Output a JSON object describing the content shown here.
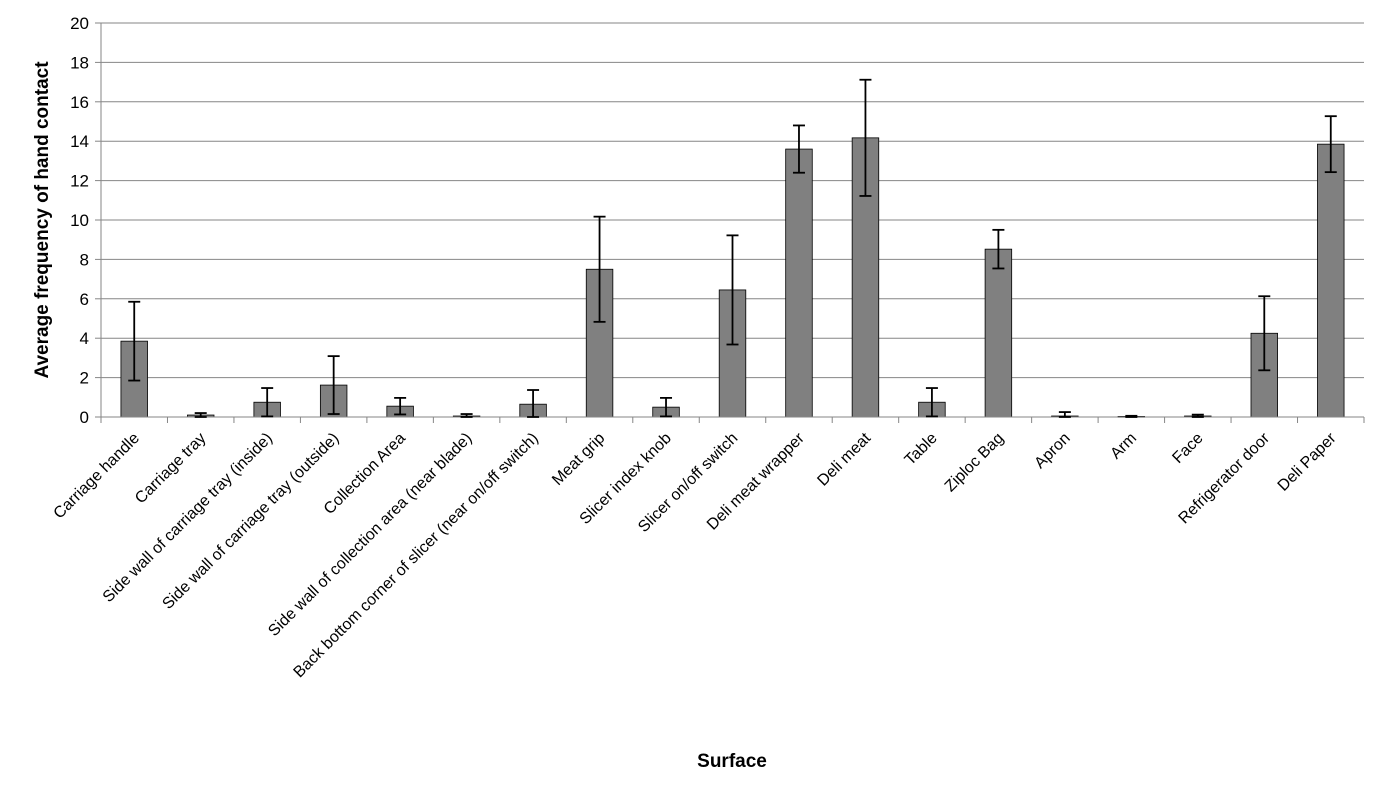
{
  "chart_data": {
    "type": "bar",
    "title": "",
    "xlabel": "Surface",
    "ylabel": "Average frequency of hand contact",
    "ylim": [
      0,
      20
    ],
    "yticks": [
      "0",
      "2",
      "4",
      "6",
      "8",
      "10",
      "12",
      "14",
      "16",
      "18",
      "20"
    ],
    "grid": true,
    "legend": "none",
    "colors": {
      "bar": "#808080",
      "bar_border": "#000000",
      "grid": "#868686",
      "axis": "#868686",
      "error_bar": "#000000"
    },
    "categories": [
      "Carriage handle",
      "Carriage tray",
      "Side wall of carriage tray (inside)",
      "Side wall of carriage tray (outside)",
      "Collection Area",
      "Side wall of collection area (near blade)",
      "Back bottom corner of slicer (near on/off switch)",
      "Meat grip",
      "Slicer index knob",
      "Slicer on/off switch",
      "Deli meat wrapper",
      "Deli meat",
      "Table",
      "Ziploc Bag",
      "Apron",
      "Arm",
      "Face",
      "Refrigerator door",
      "Deli Paper"
    ],
    "values": [
      3.85,
      0.1,
      0.75,
      1.62,
      0.55,
      0.05,
      0.65,
      7.5,
      0.5,
      6.45,
      13.6,
      14.17,
      0.75,
      8.52,
      0.05,
      0.03,
      0.05,
      4.25,
      13.85
    ],
    "error": [
      2.0,
      0.1,
      0.72,
      1.47,
      0.42,
      0.1,
      0.72,
      2.67,
      0.47,
      2.77,
      1.2,
      2.95,
      0.72,
      0.98,
      0.2,
      0.03,
      0.07,
      1.88,
      1.42
    ]
  }
}
